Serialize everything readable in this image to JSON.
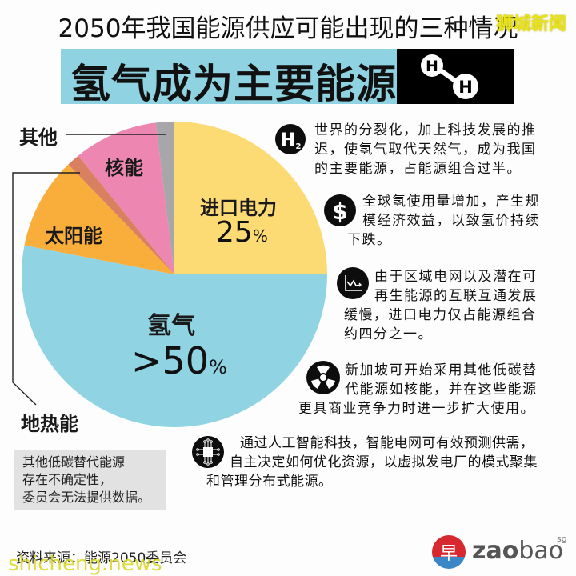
{
  "header": {
    "title": "2050年我国能源供应可能出现的三种情况",
    "watermark": "狮城新闻"
  },
  "banner": {
    "title": "氢气成为主要能源",
    "molecule": {
      "atom1": "H",
      "atom2": "H",
      "icon": "hydrogen-molecule-icon"
    },
    "bg_color": "#8fd3e3"
  },
  "chart_data": {
    "type": "pie",
    "title": "氢气成为主要能源",
    "center": [
      218,
      343
    ],
    "radius": 191,
    "start_angle_deg": 0,
    "direction": "clockwise",
    "slices": [
      {
        "name": "进口电力",
        "value": 25,
        "label": "25%",
        "color": "#fcdb75",
        "start": 0,
        "end": 90
      },
      {
        "name": "氢气",
        "value": 53,
        "label": ">50%",
        "color": "#90d4e3",
        "start": 90,
        "end": 281
      },
      {
        "name": "太阳能",
        "value": 9.7,
        "label": "",
        "color": "#f9ae3c",
        "start": 281,
        "end": 316
      },
      {
        "name": "地热能",
        "value": 1.5,
        "label": "",
        "color": "#d8805f",
        "start": 316,
        "end": 321
      },
      {
        "name": "核能",
        "value": 8.8,
        "label": "",
        "color": "#ed86b0",
        "start": 321,
        "end": 353
      },
      {
        "name": "其他",
        "value": 2,
        "label": "",
        "color": "#a7a7aa",
        "start": 353,
        "end": 360
      }
    ],
    "labels": {
      "imports": "进口电力",
      "imports_pct": "25",
      "hydrogen": "氢气",
      "hydrogen_pct": ">50",
      "percent_sign": "%",
      "solar": "太阳能",
      "nuclear": "核能",
      "other": "其他",
      "geothermal": "地热能"
    },
    "legend": "none (labels on/near slices)"
  },
  "callouts": [
    {
      "icon": "h2-icon",
      "icon_text": "H",
      "icon_sub": "2",
      "text": [
        "世界的分裂化，加上科技发展的推",
        "迟，使氢气取代天然气，成为我国",
        "的主要能源，占能源组合过半。"
      ]
    },
    {
      "icon": "dollar-icon",
      "icon_text": "$",
      "text": [
        "全球氢使用量增加，产生规",
        "模经济效益，以致氢价持续",
        "下跌。"
      ]
    },
    {
      "icon": "declining-chart-icon",
      "text": [
        "由于区域电网以及潜在可",
        "再生能源的互联互通发展",
        "缓慢，进口电力仅占能源组合",
        "约四分之一。"
      ]
    },
    {
      "icon": "radiation-icon",
      "text": [
        "新加坡可开始采用其他低碳替",
        "代能源如核能，并在这些能源",
        "更具商业竞争力时进一步扩大使用。"
      ]
    },
    {
      "icon": "circuit-chip-icon",
      "text": [
        "通过人工智能科技，智能电网可有效预测供需，",
        "自主决定如何优化资源，以虚拟发电厂的模式聚集",
        "和管理分布式能源。"
      ]
    }
  ],
  "note": {
    "lines": [
      "其他低碳替代能源",
      "存在不确定性，",
      "委员会无法提供数据。"
    ]
  },
  "footer": {
    "source": "资料来源：能源2050委员会",
    "watermark": "shicheng.news",
    "logo_bold": "zao",
    "logo_light": "bao",
    "logo_sup": "sg",
    "logo_glyph": "早",
    "logo_colors": {
      "top": "#d7282f",
      "bottom": "#3b86c6"
    }
  }
}
